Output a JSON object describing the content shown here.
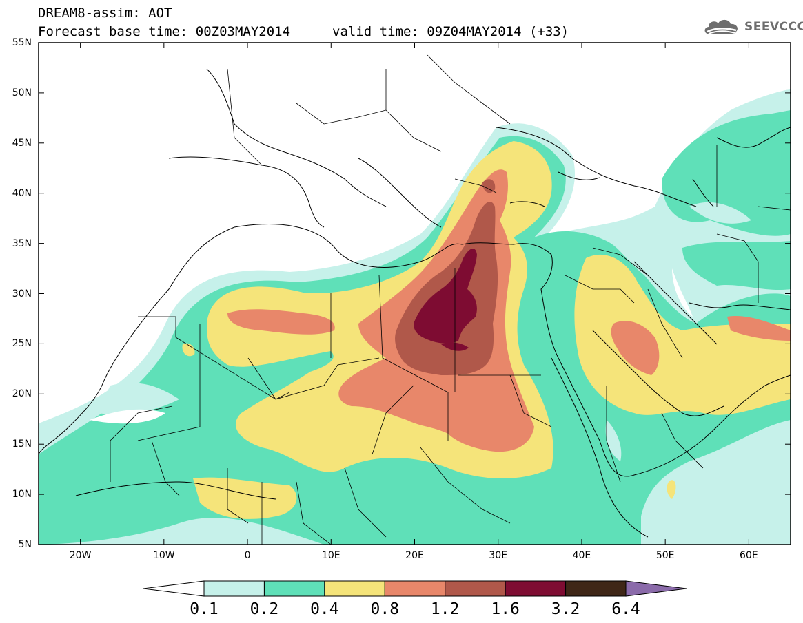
{
  "header": {
    "title_line1": "DREAM8-assim: AOT",
    "title_line2": "Forecast base time: 00Z03MAY2014",
    "valid_time": "valid time: 09Z04MAY2014 (+33)",
    "logo_text": "SEEVCCC",
    "logo_icon": "cloud-icon"
  },
  "map": {
    "lon_range": [
      -25,
      65
    ],
    "lat_range": [
      5,
      55
    ],
    "lat_ticks": [
      "55N",
      "50N",
      "45N",
      "40N",
      "35N",
      "30N",
      "25N",
      "20N",
      "15N",
      "10N",
      "5N"
    ],
    "lon_ticks": [
      "20W",
      "10W",
      "0",
      "10E",
      "20E",
      "30E",
      "40E",
      "50E",
      "60E"
    ]
  },
  "colorbar": {
    "levels": [
      "0.1",
      "0.2",
      "0.4",
      "0.8",
      "1.2",
      "1.6",
      "3.2",
      "6.4"
    ],
    "colors": [
      "#ffffff",
      "#c6f1ea",
      "#5fe0b8",
      "#f5e47a",
      "#e8876a",
      "#b0584a",
      "#7e0c32",
      "#3f2717",
      "#8b6baa"
    ]
  }
}
